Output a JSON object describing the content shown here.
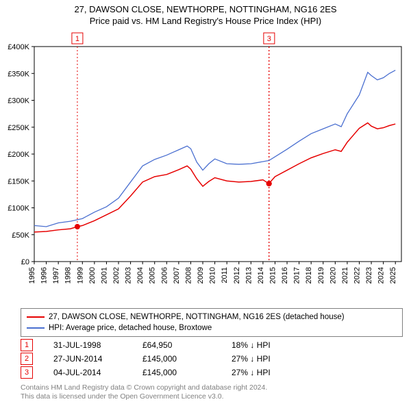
{
  "title": {
    "main": "27, DAWSON CLOSE, NEWTHORPE, NOTTINGHAM, NG16 2ES",
    "sub": "Price paid vs. HM Land Registry's House Price Index (HPI)"
  },
  "chart": {
    "type": "line",
    "background_color": "#ffffff",
    "axis_color": "#000000",
    "xlim": [
      1995,
      2025.5
    ],
    "ylim": [
      0,
      400000
    ],
    "ytick_step": 50000,
    "ytick_labels": [
      "£0",
      "£50K",
      "£100K",
      "£150K",
      "£200K",
      "£250K",
      "£300K",
      "£350K",
      "£400K"
    ],
    "xtick_step": 1,
    "xtick_labels": [
      "1995",
      "1996",
      "1997",
      "1998",
      "1999",
      "2000",
      "2001",
      "2002",
      "2003",
      "2004",
      "2005",
      "2006",
      "2007",
      "2008",
      "2009",
      "2010",
      "2011",
      "2012",
      "2013",
      "2014",
      "2015",
      "2016",
      "2017",
      "2018",
      "2019",
      "2020",
      "2021",
      "2022",
      "2023",
      "2024",
      "2025"
    ],
    "series": [
      {
        "name": "price_paid",
        "color": "#e60000",
        "line_width": 1.5,
        "points": [
          [
            1995.0,
            55000
          ],
          [
            1996.0,
            56000
          ],
          [
            1997.0,
            59000
          ],
          [
            1998.0,
            61000
          ],
          [
            1998.58,
            64950
          ],
          [
            1999.0,
            67000
          ],
          [
            2000.0,
            76000
          ],
          [
            2001.0,
            87000
          ],
          [
            2002.0,
            98000
          ],
          [
            2003.0,
            122000
          ],
          [
            2004.0,
            148000
          ],
          [
            2005.0,
            158000
          ],
          [
            2006.0,
            162000
          ],
          [
            2007.0,
            171000
          ],
          [
            2007.7,
            178000
          ],
          [
            2008.0,
            172000
          ],
          [
            2008.5,
            154000
          ],
          [
            2009.0,
            140000
          ],
          [
            2009.5,
            149000
          ],
          [
            2010.0,
            156000
          ],
          [
            2011.0,
            150000
          ],
          [
            2012.0,
            148000
          ],
          [
            2013.0,
            149000
          ],
          [
            2014.0,
            152000
          ],
          [
            2014.49,
            145000
          ],
          [
            2015.0,
            158000
          ],
          [
            2016.0,
            170000
          ],
          [
            2017.0,
            182000
          ],
          [
            2018.0,
            193000
          ],
          [
            2019.0,
            201000
          ],
          [
            2020.0,
            208000
          ],
          [
            2020.5,
            205000
          ],
          [
            2021.0,
            222000
          ],
          [
            2022.0,
            248000
          ],
          [
            2022.7,
            258000
          ],
          [
            2023.0,
            252000
          ],
          [
            2023.5,
            247000
          ],
          [
            2024.0,
            249000
          ],
          [
            2024.5,
            253000
          ],
          [
            2025.0,
            256000
          ]
        ]
      },
      {
        "name": "hpi",
        "color": "#4a6fd0",
        "line_width": 1.3,
        "points": [
          [
            1995.0,
            67000
          ],
          [
            1996.0,
            65000
          ],
          [
            1997.0,
            72000
          ],
          [
            1998.0,
            75000
          ],
          [
            1999.0,
            80000
          ],
          [
            2000.0,
            92000
          ],
          [
            2001.0,
            102000
          ],
          [
            2002.0,
            118000
          ],
          [
            2003.0,
            148000
          ],
          [
            2004.0,
            178000
          ],
          [
            2005.0,
            190000
          ],
          [
            2006.0,
            198000
          ],
          [
            2007.0,
            208000
          ],
          [
            2007.7,
            215000
          ],
          [
            2008.0,
            210000
          ],
          [
            2008.5,
            185000
          ],
          [
            2009.0,
            170000
          ],
          [
            2009.5,
            182000
          ],
          [
            2010.0,
            191000
          ],
          [
            2011.0,
            182000
          ],
          [
            2012.0,
            181000
          ],
          [
            2013.0,
            182000
          ],
          [
            2014.0,
            186000
          ],
          [
            2014.5,
            188000
          ],
          [
            2015.0,
            195000
          ],
          [
            2016.0,
            209000
          ],
          [
            2017.0,
            224000
          ],
          [
            2018.0,
            238000
          ],
          [
            2019.0,
            247000
          ],
          [
            2020.0,
            256000
          ],
          [
            2020.5,
            251000
          ],
          [
            2021.0,
            275000
          ],
          [
            2022.0,
            310000
          ],
          [
            2022.7,
            352000
          ],
          [
            2023.0,
            346000
          ],
          [
            2023.5,
            338000
          ],
          [
            2024.0,
            342000
          ],
          [
            2024.5,
            350000
          ],
          [
            2025.0,
            356000
          ]
        ]
      }
    ],
    "sale_markers": [
      {
        "n": "1",
        "year": 1998.58,
        "price": 64950,
        "color": "#e60000"
      },
      {
        "n": "2",
        "year": 2014.49,
        "price": 145000,
        "color": "#e60000"
      },
      {
        "n": "3",
        "year": 2014.51,
        "price": 145000,
        "color": "#e60000"
      }
    ],
    "visible_marker_labels": [
      1,
      3
    ]
  },
  "legend": {
    "series1": {
      "color": "#e60000",
      "label": "27, DAWSON CLOSE, NEWTHORPE, NOTTINGHAM, NG16 2ES (detached house)"
    },
    "series2": {
      "color": "#4a6fd0",
      "label": "HPI: Average price, detached house, Broxtowe"
    }
  },
  "events": [
    {
      "n": "1",
      "color": "#e60000",
      "date": "31-JUL-1998",
      "price": "£64,950",
      "diff": "18% ↓ HPI"
    },
    {
      "n": "2",
      "color": "#e60000",
      "date": "27-JUN-2014",
      "price": "£145,000",
      "diff": "27% ↓ HPI"
    },
    {
      "n": "3",
      "color": "#e60000",
      "date": "04-JUL-2014",
      "price": "£145,000",
      "diff": "27% ↓ HPI"
    }
  ],
  "footer": {
    "line1": "Contains HM Land Registry data © Crown copyright and database right 2024.",
    "line2": "This data is licensed under the Open Government Licence v3.0."
  }
}
